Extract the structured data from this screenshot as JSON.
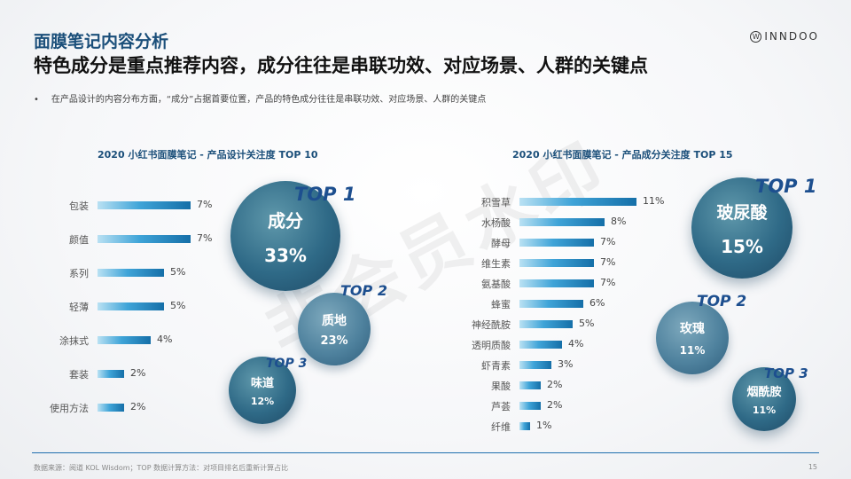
{
  "header": {
    "title": "面膜笔记内容分析",
    "subtitle": "特色成分是重点推荐内容，成分往往是串联功效、对应场景、人群的关键点",
    "logo_text": "INNDOO",
    "logo_mark": "W"
  },
  "bullet": {
    "marker": "•",
    "text": "在产品设计的内容分布方面，“成分”占据首要位置，产品的特色成分往往是串联功效、对应场景、人群的关键点"
  },
  "watermark": "非会员水印",
  "left_chart": {
    "title": "2020 小红书面膜笔记 - 产品设计关注度 TOP 10",
    "top1": {
      "label": "TOP 1",
      "name": "成分",
      "value": "33%"
    },
    "top2": {
      "label": "TOP 2",
      "name": "质地",
      "value": "23%"
    },
    "top3": {
      "label": "TOP 3",
      "name": "味道",
      "value": "12%"
    }
  },
  "right_chart": {
    "title": "2020 小红书面膜笔记 - 产品成分关注度 TOP 15",
    "top1": {
      "label": "TOP 1",
      "name": "玻尿酸",
      "value": "15%"
    },
    "top2": {
      "label": "TOP 2",
      "name": "玫瑰",
      "value": "11%"
    },
    "top3": {
      "label": "TOP 3",
      "name": "烟酰胺",
      "value": "11%"
    }
  },
  "chart_data": [
    {
      "type": "bar",
      "orientation": "horizontal",
      "title": "2020 小红书面膜笔记 - 产品设计关注度 TOP 10",
      "categories": [
        "包装",
        "颜值",
        "系列",
        "轻薄",
        "涂抹式",
        "套装",
        "使用方法"
      ],
      "values": [
        7,
        7,
        5,
        5,
        4,
        2,
        2
      ],
      "value_labels": [
        "7%",
        "7%",
        "5%",
        "5%",
        "4%",
        "2%",
        "2%"
      ],
      "unit": "%"
    },
    {
      "type": "bar",
      "orientation": "horizontal",
      "title": "2020 小红书面膜笔记 - 产品成分关注度 TOP 15",
      "categories": [
        "积雪草",
        "水杨酸",
        "酵母",
        "维生素",
        "氨基酸",
        "蜂蜜",
        "神经酰胺",
        "透明质酸",
        "虾青素",
        "果酸",
        "芦荟",
        "纤维"
      ],
      "values": [
        11,
        8,
        7,
        7,
        7,
        6,
        5,
        4,
        3,
        2,
        2,
        1
      ],
      "value_labels": [
        "11%",
        "8%",
        "7%",
        "7%",
        "7%",
        "6%",
        "5%",
        "4%",
        "3%",
        "2%",
        "2%",
        "1%"
      ],
      "unit": "%"
    }
  ],
  "footer": {
    "source": "数据来源：阅道 KOL Wisdom；TOP 数据计算方法：对项目排名后重新计算占比",
    "page": "15"
  }
}
